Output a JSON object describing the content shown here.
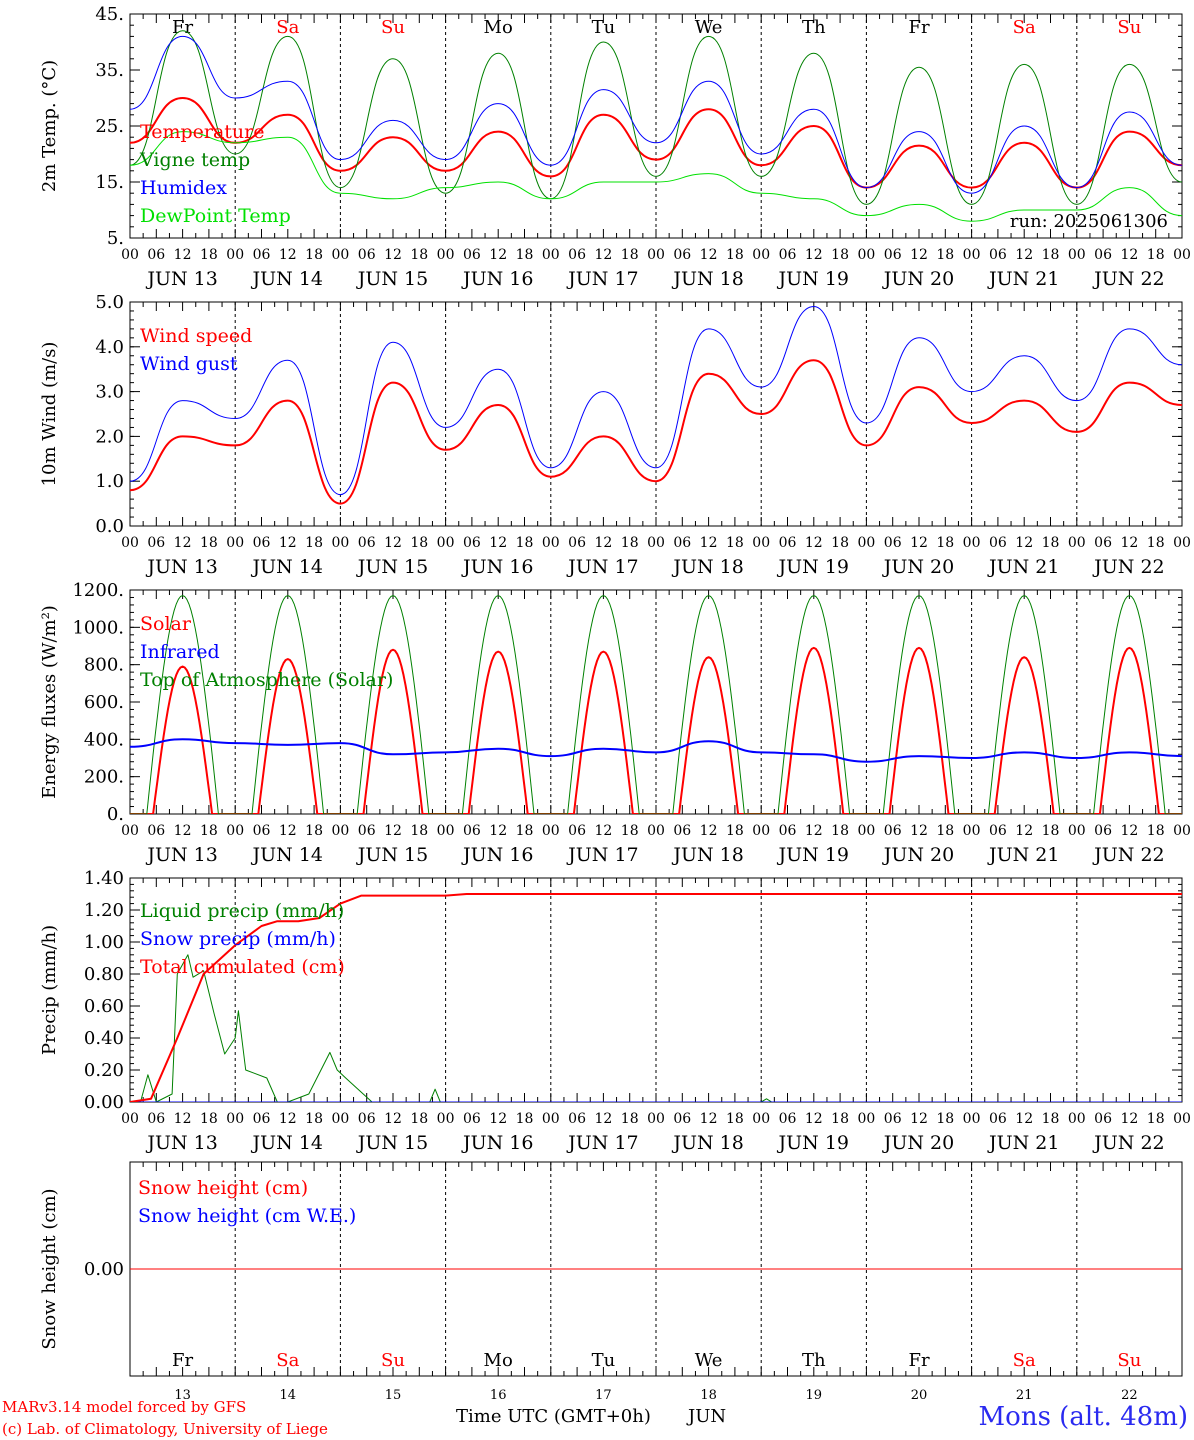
{
  "run_label": "run: 2025061306",
  "credit": {
    "line1": "MARv3.14 model forced by GFS",
    "line2": "(c) Lab. of Climatology, University of Liege"
  },
  "footer": {
    "xlabel": "Time UTC (GMT+0h)",
    "month": "JUN",
    "station": "Mons (alt. 48m)"
  },
  "weekdays": [
    {
      "label": "Fr",
      "weekend": false
    },
    {
      "label": "Sa",
      "weekend": true
    },
    {
      "label": "Su",
      "weekend": true
    },
    {
      "label": "Mo",
      "weekend": false
    },
    {
      "label": "Tu",
      "weekend": false
    },
    {
      "label": "We",
      "weekend": false
    },
    {
      "label": "Th",
      "weekend": false
    },
    {
      "label": "Fr",
      "weekend": false
    },
    {
      "label": "Sa",
      "weekend": true
    },
    {
      "label": "Su",
      "weekend": true
    }
  ],
  "date_labels": [
    "JUN 13",
    "JUN 14",
    "JUN 15",
    "JUN 16",
    "JUN 17",
    "JUN 18",
    "JUN 19",
    "JUN 20",
    "JUN 21",
    "JUN 22"
  ],
  "day_numbers": [
    "13",
    "14",
    "15",
    "16",
    "17",
    "18",
    "19",
    "20",
    "21",
    "22"
  ],
  "hour_labels": [
    "00",
    "06",
    "12",
    "18"
  ],
  "colors": {
    "red": "#ff0000",
    "blue": "#0000ff",
    "green": "#008000",
    "lightgreen": "#00e000",
    "weekday": "#000000",
    "weekend": "#ff0000"
  },
  "chart_data": [
    {
      "type": "line",
      "ylabel": "2m Temp. (°C)",
      "ylim": [
        5,
        45
      ],
      "yticks": [
        {
          "v": 5,
          "label": "5."
        },
        {
          "v": 15,
          "label": "15."
        },
        {
          "v": 25,
          "label": "25."
        },
        {
          "v": 35,
          "label": "35."
        },
        {
          "v": 45,
          "label": "45."
        }
      ],
      "x_days": [
        0,
        0.5,
        1,
        1.5,
        2,
        2.5,
        3,
        3.5,
        4,
        4.5,
        5,
        5.5,
        6,
        6.5,
        7,
        7.5,
        8,
        8.5,
        9,
        9.5,
        10
      ],
      "series": [
        {
          "name": "Temperature",
          "color": "#ff0000",
          "width": 2,
          "values": [
            22,
            30,
            22,
            27,
            17,
            23,
            17,
            24,
            16,
            27,
            19,
            28,
            18,
            25,
            14,
            21.5,
            14,
            22,
            14,
            24,
            18
          ]
        },
        {
          "name": "Vigne temp",
          "color": "#008000",
          "width": 1,
          "values": [
            18,
            42,
            20,
            41,
            14,
            37,
            13,
            38,
            12,
            40,
            16,
            41,
            16,
            38,
            11,
            35.5,
            11,
            36,
            11,
            36,
            15
          ]
        },
        {
          "name": "Humidex",
          "color": "#0000ff",
          "width": 1,
          "values": [
            28,
            41,
            30,
            33,
            19,
            26,
            19,
            29,
            18,
            31.5,
            22,
            33,
            20,
            28,
            14,
            24,
            13,
            25,
            14,
            27.5,
            18
          ]
        },
        {
          "name": "DewPoint Temp",
          "color": "#00e000",
          "width": 1,
          "values": [
            18,
            24,
            22,
            23,
            13,
            12,
            14,
            15,
            12,
            15,
            15,
            16.5,
            13,
            12,
            9,
            11,
            8,
            10,
            10,
            14,
            9
          ]
        }
      ]
    },
    {
      "type": "line",
      "ylabel": "10m Wind (m/s)",
      "ylim": [
        0,
        5
      ],
      "yticks": [
        {
          "v": 0,
          "label": "0.0"
        },
        {
          "v": 1,
          "label": "1.0"
        },
        {
          "v": 2,
          "label": "2.0"
        },
        {
          "v": 3,
          "label": "3.0"
        },
        {
          "v": 4,
          "label": "4.0"
        },
        {
          "v": 5,
          "label": "5.0"
        }
      ],
      "x_days": [
        0,
        0.5,
        1,
        1.5,
        2,
        2.5,
        3,
        3.5,
        4,
        4.5,
        5,
        5.5,
        6,
        6.5,
        7,
        7.5,
        8,
        8.5,
        9,
        9.5,
        10
      ],
      "series": [
        {
          "name": "Wind speed",
          "color": "#ff0000",
          "width": 2,
          "values": [
            0.8,
            2.0,
            1.8,
            2.8,
            0.5,
            3.2,
            1.7,
            2.7,
            1.1,
            2.0,
            1.0,
            3.4,
            2.5,
            3.7,
            1.8,
            3.1,
            2.3,
            2.8,
            2.1,
            3.2,
            2.7
          ]
        },
        {
          "name": "Wind gust",
          "color": "#0000ff",
          "width": 1,
          "values": [
            1.0,
            2.8,
            2.4,
            3.7,
            0.7,
            4.1,
            2.2,
            3.5,
            1.3,
            3.0,
            1.3,
            4.4,
            3.1,
            4.9,
            2.3,
            4.2,
            3.0,
            3.8,
            2.8,
            4.4,
            3.6
          ]
        }
      ]
    },
    {
      "type": "line",
      "ylabel": "Energy fluxes (W/m²)",
      "ylim": [
        0,
        1200
      ],
      "yticks": [
        {
          "v": 0,
          "label": "0."
        },
        {
          "v": 200,
          "label": "200."
        },
        {
          "v": 400,
          "label": "400."
        },
        {
          "v": 600,
          "label": "600."
        },
        {
          "v": 800,
          "label": "800."
        },
        {
          "v": 1000,
          "label": "1000."
        },
        {
          "v": 1200,
          "label": "1200."
        }
      ],
      "diurnal": [
        {
          "name": "Solar",
          "color": "#ff0000",
          "width": 2,
          "peaks": [
            790,
            830,
            880,
            870,
            870,
            840,
            890,
            890,
            840,
            890
          ]
        },
        {
          "name": "Top of Atmosphere (Solar)",
          "color": "#008000",
          "width": 1,
          "peaks": [
            1170,
            1170,
            1170,
            1170,
            1170,
            1170,
            1170,
            1170,
            1170,
            1170
          ]
        }
      ],
      "series": [
        {
          "name": "Infrared",
          "color": "#0000ff",
          "width": 2,
          "x_days": [
            0,
            0.5,
            1,
            1.5,
            2,
            2.5,
            3,
            3.5,
            4,
            4.5,
            5,
            5.5,
            6,
            6.5,
            7,
            7.5,
            8,
            8.5,
            9,
            9.5,
            10
          ],
          "values": [
            360,
            400,
            380,
            370,
            380,
            320,
            330,
            350,
            310,
            350,
            330,
            390,
            330,
            320,
            280,
            310,
            300,
            330,
            300,
            330,
            310
          ]
        }
      ]
    },
    {
      "type": "line",
      "ylabel": "Precip (mm/h)",
      "ylim": [
        0,
        1.4
      ],
      "yticks": [
        {
          "v": 0,
          "label": "0.00"
        },
        {
          "v": 0.2,
          "label": "0.20"
        },
        {
          "v": 0.4,
          "label": "0.40"
        },
        {
          "v": 0.6,
          "label": "0.60"
        },
        {
          "v": 0.8,
          "label": "0.80"
        },
        {
          "v": 1.0,
          "label": "1.00"
        },
        {
          "v": 1.2,
          "label": "1.20"
        },
        {
          "v": 1.4,
          "label": "1.40"
        }
      ],
      "series": [
        {
          "name": "Liquid precip (mm/h)",
          "color": "#008000",
          "width": 1,
          "x_days": [
            0,
            0.1,
            0.17,
            0.25,
            0.4,
            0.45,
            0.55,
            0.6,
            0.7,
            0.8,
            0.9,
            1.0,
            1.03,
            1.1,
            1.3,
            1.4,
            1.5,
            1.7,
            1.9,
            1.97,
            2.05,
            2.3,
            2.5,
            2.85,
            2.9,
            2.95,
            3.0,
            6.0,
            6.05,
            6.1,
            10
          ],
          "values": [
            0,
            0,
            0.17,
            0,
            0.05,
            0.8,
            0.92,
            0.78,
            0.82,
            0.55,
            0.3,
            0.4,
            0.57,
            0.2,
            0.15,
            0,
            0,
            0.05,
            0.31,
            0.2,
            0.15,
            0,
            0,
            0,
            0.08,
            0,
            0,
            0,
            0.02,
            0,
            0
          ]
        },
        {
          "name": "Snow precip (mm/h)",
          "color": "#0000ff",
          "width": 1,
          "x_days": [
            0,
            10
          ],
          "values": [
            0,
            0
          ]
        },
        {
          "name": "Total cumulated (cm)",
          "color": "#ff0000",
          "width": 2,
          "x_days": [
            0,
            0.2,
            0.45,
            0.7,
            1.0,
            1.25,
            1.4,
            1.6,
            1.8,
            2.0,
            2.2,
            3.0,
            3.2,
            10
          ],
          "values": [
            0,
            0.02,
            0.4,
            0.8,
            0.98,
            1.1,
            1.13,
            1.13,
            1.15,
            1.24,
            1.29,
            1.29,
            1.3,
            1.3
          ]
        }
      ]
    },
    {
      "type": "line",
      "ylabel": "Snow height (cm)",
      "ylim": [
        -1,
        1
      ],
      "yticks": [
        {
          "v": 0,
          "label": "0.00"
        }
      ],
      "series": [
        {
          "name": "Snow height (cm)",
          "color": "#ff0000",
          "width": 1,
          "x_days": [
            0,
            10
          ],
          "values": [
            0,
            0
          ]
        },
        {
          "name": "Snow height (cm W.E.)",
          "color": "#0000ff",
          "width": 1,
          "x_days": [
            0,
            10
          ],
          "values": [
            0,
            0
          ],
          "hidden": true
        }
      ]
    }
  ]
}
